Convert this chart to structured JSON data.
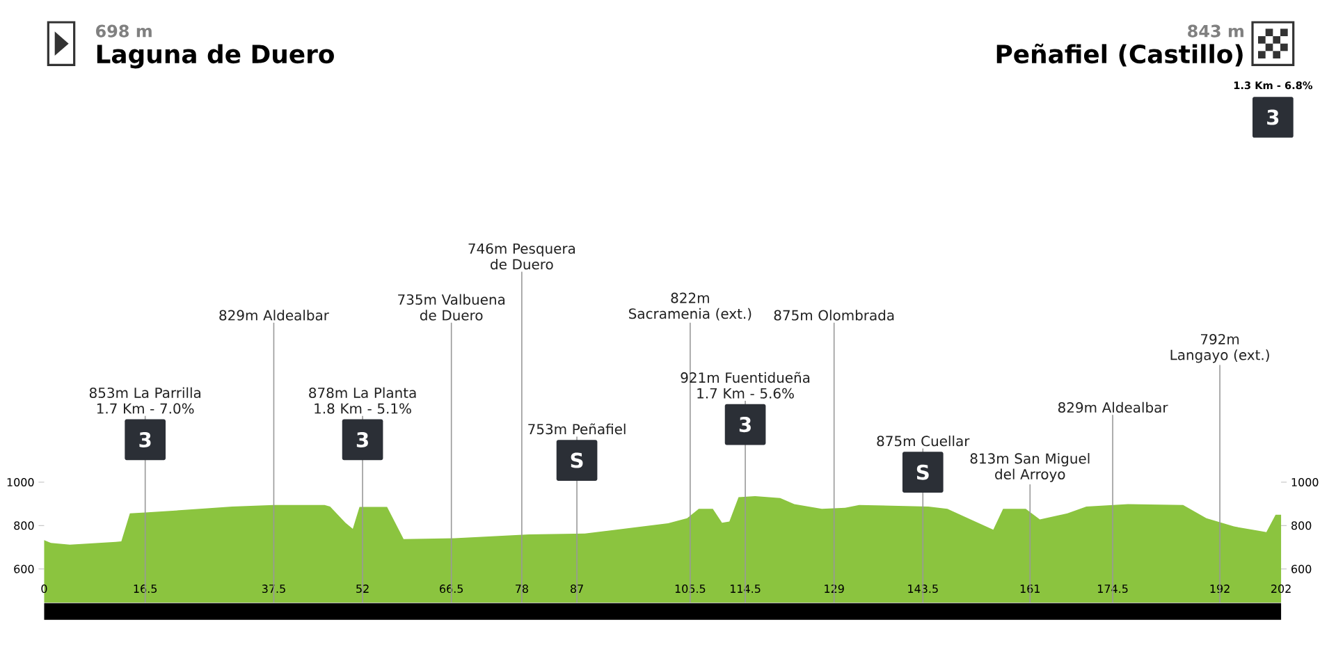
{
  "chart_data": {
    "type": "area",
    "color": "#8bc43f",
    "x": [
      0,
      1.1,
      4.2,
      11.7,
      12.6,
      14,
      16.5,
      25.4,
      30.7,
      37.5,
      45.8,
      46.7,
      49.2,
      50.4,
      51.5,
      56,
      58.7,
      67,
      79.2,
      88.3,
      101.9,
      105,
      106.9,
      109.2,
      110.7,
      111.9,
      113.4,
      116.1,
      120.2,
      122.5,
      127,
      130.8,
      133.1,
      144.4,
      147.5,
      151.3,
      155,
      156.6,
      160.3,
      162.6,
      167.1,
      170.2,
      177,
      186,
      189.8,
      194.3,
      199.6,
      201.1,
      202
    ],
    "values": [
      733,
      720,
      712,
      725,
      727,
      856,
      860,
      877,
      888,
      895,
      895,
      888,
      813,
      785,
      886,
      886,
      738,
      742,
      759,
      763,
      811,
      834,
      877,
      877,
      813,
      819,
      931,
      936,
      927,
      899,
      877,
      882,
      895,
      888,
      877,
      828,
      781,
      877,
      877,
      828,
      856,
      888,
      899,
      895,
      834,
      796,
      770,
      850,
      850
    ],
    "xlim": [
      0,
      202
    ],
    "ylim": [
      445,
      1000
    ],
    "xticks": [
      0,
      16.5,
      37.5,
      52,
      66.5,
      78,
      87,
      105.5,
      114.5,
      129,
      143.5,
      161,
      174.5,
      192,
      202
    ],
    "yticks": [
      600,
      800,
      1000
    ],
    "y2lim": [
      445,
      1000
    ],
    "y2ticks": [
      600,
      800,
      1000
    ],
    "ref_lines": [
      {
        "axis": "x",
        "value": 16.5,
        "label": "853m La Parrilla 1.7 Km - 7.0%",
        "color": "#999999"
      },
      {
        "axis": "x",
        "value": 37.5,
        "label": "829m Aldealbar",
        "color": "#999999"
      },
      {
        "axis": "x",
        "value": 52,
        "label": "878m La Planta 1.8 Km - 5.1%",
        "color": "#999999"
      },
      {
        "axis": "x",
        "value": 66.5,
        "label": "735m Valbuena de Duero",
        "color": "#999999"
      },
      {
        "axis": "x",
        "value": 78,
        "label": "746m Pesquera de Duero",
        "color": "#999999"
      },
      {
        "axis": "x",
        "value": 87,
        "label": "753m Peñafiel",
        "color": "#999999"
      },
      {
        "axis": "x",
        "value": 105.5,
        "label": "822m Sacramenia (ext.)",
        "color": "#999999"
      },
      {
        "axis": "x",
        "value": 114.5,
        "label": "921m Fuentidueña 1.7 Km - 5.6%",
        "color": "#999999"
      },
      {
        "axis": "x",
        "value": 129,
        "label": "875m Olombrada",
        "color": "#999999"
      },
      {
        "axis": "x",
        "value": 143.5,
        "label": "875m Cuellar",
        "color": "#999999"
      },
      {
        "axis": "x",
        "value": 161,
        "label": "813m San Miguel del Arroyo",
        "color": "#999999"
      },
      {
        "axis": "x",
        "value": 174.5,
        "label": "829m Aldealbar",
        "color": "#999999"
      },
      {
        "axis": "x",
        "value": 192,
        "label": "792m Langayo (ext.)",
        "color": "#999999"
      }
    ],
    "annotations": [
      "698 m",
      "Laguna de Duero",
      "843 m",
      "Peñafiel (Castillo)",
      "1.3 Km - 6.8%",
      "3",
      "3",
      "S",
      "3",
      "S",
      "3"
    ]
  }
}
